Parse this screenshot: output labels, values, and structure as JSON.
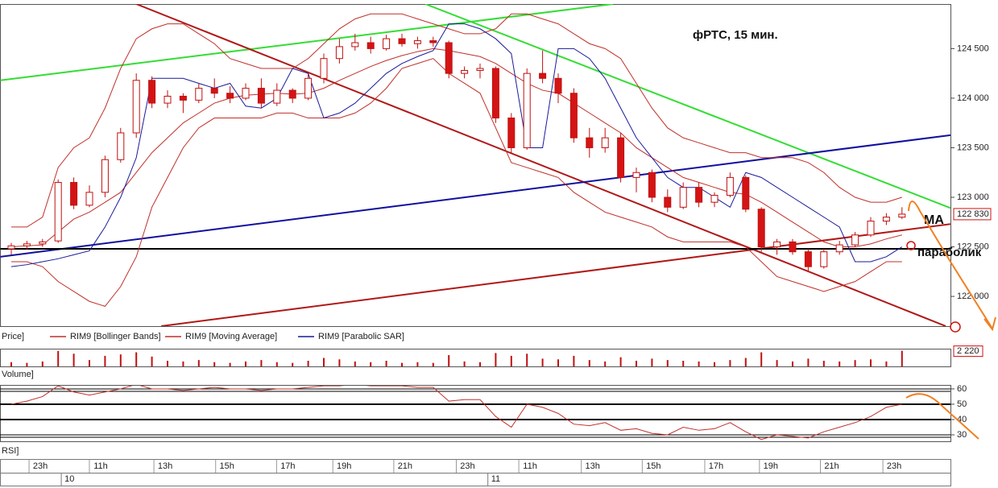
{
  "chart_data": {
    "type": "candlestick",
    "title": "фРТС,  15 мин.",
    "annotations": [
      "МА",
      "параболик"
    ],
    "panels": {
      "price": "Price]",
      "volume": "Volume]",
      "rsi": "RSI]"
    },
    "up_color": "#ffffff",
    "down_color": "#d41414",
    "edge_color": "#c01010",
    "ylim": [
      121700,
      124950
    ],
    "yticks": [
      {
        "value": 122000,
        "label": "122 000"
      },
      {
        "value": 122500,
        "label": "122 500"
      },
      {
        "value": 123000,
        "label": "123 000"
      },
      {
        "value": 123500,
        "label": "123 500"
      },
      {
        "value": 124000,
        "label": "124 000"
      },
      {
        "value": 124500,
        "label": "124 500"
      }
    ],
    "current_price": {
      "value": 122830,
      "label": "122 830"
    },
    "xticks": [
      {
        "value": 1.86,
        "label": "23h"
      },
      {
        "value": 5.72,
        "label": "11h"
      },
      {
        "value": 9.85,
        "label": "13h"
      },
      {
        "value": 13.8,
        "label": "15h"
      },
      {
        "value": 17.7,
        "label": "17h"
      },
      {
        "value": 21.3,
        "label": "19h"
      },
      {
        "value": 25.2,
        "label": "21h"
      },
      {
        "value": 29.2,
        "label": "23h"
      },
      {
        "value": 33.2,
        "label": "11h"
      },
      {
        "value": 37.2,
        "label": "13h"
      },
      {
        "value": 41.1,
        "label": "15h"
      },
      {
        "value": 45.1,
        "label": "17h"
      },
      {
        "value": 48.6,
        "label": "19h"
      },
      {
        "value": 52.5,
        "label": "21h"
      },
      {
        "value": 56.5,
        "label": "23h"
      }
    ],
    "days": [
      {
        "value": 3.2,
        "label": "10"
      },
      {
        "value": 30.5,
        "label": "11"
      }
    ],
    "ohlc": [
      [
        122480,
        122540,
        122420,
        122510
      ],
      [
        122510,
        122560,
        122470,
        122530
      ],
      [
        122530,
        122580,
        122500,
        122550
      ],
      [
        122560,
        123180,
        122540,
        123150
      ],
      [
        123150,
        123200,
        122880,
        122920
      ],
      [
        122920,
        123120,
        122900,
        123050
      ],
      [
        123050,
        123420,
        123000,
        123380
      ],
      [
        123380,
        123700,
        123350,
        123650
      ],
      [
        123650,
        124250,
        123600,
        124180
      ],
      [
        124180,
        124220,
        123900,
        123950
      ],
      [
        123950,
        124080,
        123900,
        124020
      ],
      [
        124020,
        124050,
        123850,
        123980
      ],
      [
        123980,
        124150,
        123950,
        124100
      ],
      [
        124100,
        124200,
        124000,
        124050
      ],
      [
        124050,
        124120,
        123950,
        124000
      ],
      [
        124000,
        124150,
        123980,
        124100
      ],
      [
        124100,
        124200,
        123900,
        123950
      ],
      [
        123950,
        124150,
        123920,
        124080
      ],
      [
        124080,
        124100,
        123950,
        124000
      ],
      [
        124000,
        124250,
        123980,
        124200
      ],
      [
        124200,
        124450,
        124150,
        124400
      ],
      [
        124400,
        124600,
        124350,
        124520
      ],
      [
        124520,
        124650,
        124480,
        124560
      ],
      [
        124560,
        124620,
        124450,
        124500
      ],
      [
        124500,
        124640,
        124480,
        124600
      ],
      [
        124600,
        124650,
        124520,
        124550
      ],
      [
        124550,
        124620,
        124500,
        124580
      ],
      [
        124580,
        124620,
        124520,
        124560
      ],
      [
        124560,
        124580,
        124200,
        124250
      ],
      [
        124250,
        124320,
        124200,
        124280
      ],
      [
        124280,
        124350,
        124200,
        124300
      ],
      [
        124300,
        124320,
        123750,
        123800
      ],
      [
        123800,
        123850,
        123450,
        123500
      ],
      [
        123500,
        124300,
        123480,
        124250
      ],
      [
        124250,
        124480,
        124150,
        124200
      ],
      [
        124200,
        124250,
        123950,
        124050
      ],
      [
        124050,
        124100,
        123550,
        123600
      ],
      [
        123600,
        123700,
        123400,
        123500
      ],
      [
        123500,
        123700,
        123450,
        123600
      ],
      [
        123600,
        123650,
        123150,
        123200
      ],
      [
        123200,
        123300,
        123050,
        123250
      ],
      [
        123250,
        123280,
        122950,
        123000
      ],
      [
        123000,
        123080,
        122850,
        122900
      ],
      [
        122900,
        123150,
        122880,
        123100
      ],
      [
        123100,
        123150,
        122900,
        122950
      ],
      [
        122950,
        123050,
        122900,
        123020
      ],
      [
        123020,
        123250,
        123000,
        123200
      ],
      [
        123200,
        123220,
        122850,
        122880
      ],
      [
        122880,
        122900,
        122450,
        122500
      ],
      [
        122500,
        122580,
        122420,
        122550
      ],
      [
        122550,
        122580,
        122420,
        122450
      ],
      [
        122450,
        122480,
        122250,
        122300
      ],
      [
        122300,
        122480,
        122280,
        122450
      ],
      [
        122450,
        122560,
        122420,
        122520
      ],
      [
        122520,
        122650,
        122500,
        122620
      ],
      [
        122620,
        122800,
        122600,
        122760
      ],
      [
        122760,
        122840,
        122720,
        122800
      ],
      [
        122800,
        122900,
        122780,
        122830
      ]
    ],
    "overlays": [
      {
        "name": "RIM9 [Bollinger Bands]",
        "color": "#c0302a",
        "upper": [
          122700,
          122700,
          122800,
          123300,
          123500,
          123600,
          123900,
          124300,
          124600,
          124700,
          124750,
          124750,
          124650,
          124550,
          124400,
          124350,
          124300,
          124300,
          124300,
          124400,
          124550,
          124700,
          124800,
          124850,
          124850,
          124850,
          124800,
          124750,
          124700,
          124650,
          124650,
          124700,
          124850,
          124850,
          124800,
          124750,
          124650,
          124550,
          124500,
          124400,
          124150,
          123900,
          123700,
          123600,
          123550,
          123500,
          123450,
          123450,
          123400,
          123400,
          123400,
          123350,
          123250,
          123100,
          123000,
          122950,
          122950,
          123000
        ],
        "lower": [
          122350,
          122350,
          122300,
          122150,
          122050,
          121950,
          121900,
          122100,
          122400,
          122900,
          123200,
          123500,
          123700,
          123800,
          123800,
          123800,
          123800,
          123850,
          123850,
          123800,
          123800,
          123800,
          123850,
          123950,
          124100,
          124300,
          124350,
          124400,
          124250,
          124150,
          124050,
          123700,
          123350,
          123300,
          123250,
          123200,
          123050,
          122950,
          122850,
          122800,
          122750,
          122700,
          122600,
          122550,
          122550,
          122550,
          122550,
          122500,
          122350,
          122200,
          122150,
          122100,
          122050,
          122100,
          122150,
          122250,
          122350,
          122350
        ]
      },
      {
        "name": "RIM9 [Moving Average]",
        "color": "#c0302a",
        "values": [
          122500,
          122510,
          122520,
          122650,
          122780,
          122850,
          122950,
          123050,
          123250,
          123450,
          123600,
          123750,
          123850,
          123950,
          124000,
          124030,
          124040,
          124050,
          124040,
          124050,
          124100,
          124180,
          124250,
          124320,
          124380,
          124430,
          124470,
          124500,
          124480,
          124450,
          124420,
          124350,
          124250,
          124150,
          124080,
          124050,
          123950,
          123850,
          123750,
          123650,
          123500,
          123400,
          123300,
          123200,
          123150,
          123100,
          123050,
          123030,
          122950,
          122850,
          122750,
          122650,
          122550,
          122500,
          122500,
          122530,
          122580,
          122620
        ]
      },
      {
        "name": "RIM9 [Parabolic SAR]",
        "color": "#1a1a9a",
        "values": [
          122300,
          122320,
          122350,
          122380,
          122420,
          122460,
          122700,
          123000,
          123400,
          124200,
          124200,
          124200,
          124150,
          124100,
          124150,
          123920,
          123900,
          124000,
          124300,
          124250,
          123800,
          123850,
          123950,
          124100,
          124250,
          124350,
          124420,
          124480,
          124750,
          124750,
          124700,
          124600,
          124450,
          123500,
          123500,
          124500,
          124500,
          124400,
          124200,
          123900,
          123600,
          123400,
          123200,
          123100,
          123100,
          123000,
          122900,
          123250,
          123200,
          123100,
          123000,
          122900,
          122800,
          122700,
          122350,
          122350,
          122400,
          122500
        ]
      }
    ],
    "trendlines": [
      {
        "color": "#33dd33",
        "x1": -0.7,
        "y1": 124180,
        "x2": 38.5,
        "y2": 124950
      },
      {
        "color": "#33dd33",
        "x1": 26.5,
        "y1": 124950,
        "x2": 60.1,
        "y2": 122892
      },
      {
        "color": "#b01818",
        "x1": 8.0,
        "y1": 124950,
        "x2": 59.8,
        "y2": 121700
      },
      {
        "color": "#1010a0",
        "x1": -0.7,
        "y1": 122400,
        "x2": 60.1,
        "y2": 123627
      },
      {
        "color": "#b01818",
        "x1": 9.6,
        "y1": 121700,
        "x2": 60.1,
        "y2": 122730
      },
      {
        "color": "#000000",
        "x1": -0.7,
        "y1": 122480,
        "x2": 60.8,
        "y2": 122480
      }
    ],
    "volume": [
      600,
      500,
      700,
      2200,
      1800,
      900,
      1500,
      1700,
      2000,
      1400,
      800,
      700,
      900,
      600,
      500,
      700,
      900,
      600,
      500,
      800,
      1200,
      1000,
      700,
      600,
      800,
      500,
      600,
      500,
      1600,
      700,
      600,
      1900,
      1500,
      1800,
      1100,
      1000,
      1500,
      900,
      700,
      1300,
      800,
      1100,
      900,
      800,
      700,
      600,
      900,
      1200,
      2000,
      900,
      700,
      1100,
      800,
      700,
      900,
      1000,
      700,
      2220
    ],
    "volume_ylim": [
      0,
      2400
    ],
    "current_volume": {
      "value": 2220,
      "label": "2 220"
    },
    "rsi": [
      50,
      52,
      55,
      62,
      58,
      56,
      58,
      60,
      63,
      60,
      60,
      59,
      60,
      61,
      60,
      60,
      59,
      60,
      60,
      61,
      62,
      62,
      63,
      62,
      62,
      62,
      61,
      61,
      52,
      53,
      53,
      42,
      35,
      50,
      48,
      44,
      37,
      36,
      38,
      33,
      34,
      31,
      30,
      35,
      33,
      34,
      38,
      32,
      27,
      30,
      29,
      28,
      32,
      35,
      38,
      42,
      48,
      50
    ],
    "rsi_ylim": [
      25.8,
      62.6
    ],
    "rsi_yticks": [
      30,
      40,
      50,
      60
    ]
  }
}
